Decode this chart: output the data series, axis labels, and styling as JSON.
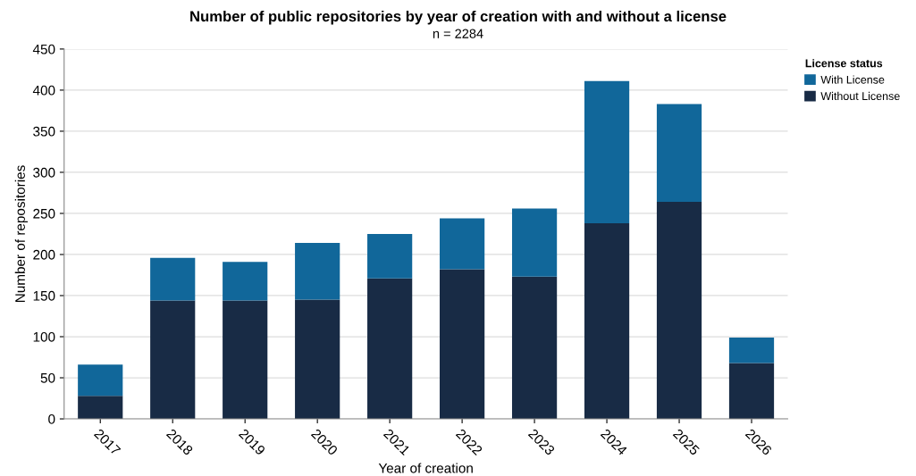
{
  "chart_data": {
    "type": "bar",
    "title": "Number of public repositories by year of creation with and without a license",
    "subtitle": "n = 2284",
    "xlabel": "Year of creation",
    "ylabel": "Number of repositories",
    "legend_title": "License status",
    "categories": [
      "2017",
      "2018",
      "2019",
      "2020",
      "2021",
      "2022",
      "2023",
      "2024",
      "2025",
      "2026"
    ],
    "series": [
      {
        "name": "Without License",
        "color": "#182b45",
        "values": [
          28,
          144,
          144,
          145,
          171,
          182,
          173,
          238,
          264,
          68
        ]
      },
      {
        "name": "With License",
        "color": "#11679a",
        "values": [
          38,
          52,
          47,
          69,
          54,
          62,
          83,
          173,
          119,
          31
        ]
      }
    ],
    "stacked": true,
    "ylim": [
      0,
      450
    ],
    "yticks": [
      0,
      50,
      100,
      150,
      200,
      250,
      300,
      350,
      400,
      450
    ],
    "grid": "y",
    "legend": "top right"
  }
}
